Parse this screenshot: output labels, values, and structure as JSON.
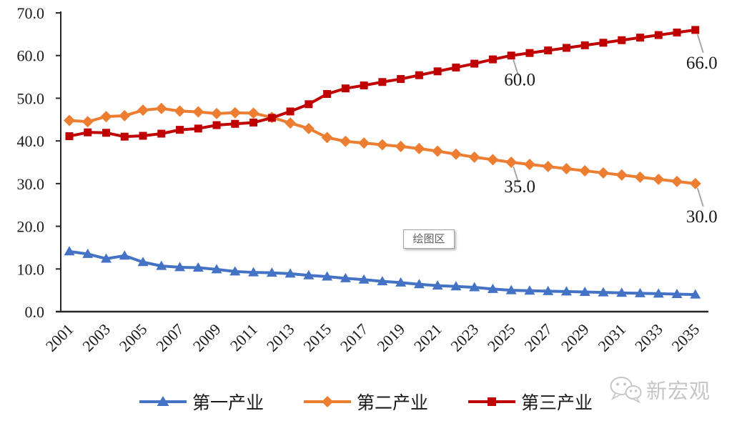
{
  "chart_data": {
    "type": "line",
    "title": "",
    "xlabel": "",
    "ylabel": "",
    "xlim": [
      2001,
      2035
    ],
    "ylim": [
      0,
      70
    ],
    "grid": false,
    "legend_position": "bottom",
    "x": [
      2001,
      2002,
      2003,
      2004,
      2005,
      2006,
      2007,
      2008,
      2009,
      2010,
      2011,
      2012,
      2013,
      2014,
      2015,
      2016,
      2017,
      2018,
      2019,
      2020,
      2021,
      2022,
      2023,
      2024,
      2025,
      2026,
      2027,
      2028,
      2029,
      2030,
      2031,
      2032,
      2033,
      2034,
      2035
    ],
    "x_tick_labels": [
      "2001",
      "2003",
      "2005",
      "2007",
      "2009",
      "2011",
      "2013",
      "2015",
      "2017",
      "2019",
      "2021",
      "2023",
      "2025",
      "2027",
      "2029",
      "2031",
      "2033",
      "2035"
    ],
    "y_tick_labels": [
      "70.0",
      "60.0",
      "50.0",
      "40.0",
      "30.0",
      "20.0",
      "10.0",
      "0.0"
    ],
    "series": [
      {
        "name": "第一产业",
        "marker": "triangle",
        "color": "#4472C4",
        "values": [
          14.1,
          13.5,
          12.4,
          13.1,
          11.6,
          10.7,
          10.4,
          10.3,
          9.9,
          9.4,
          9.2,
          9.1,
          8.9,
          8.5,
          8.2,
          7.8,
          7.5,
          7.1,
          6.8,
          6.4,
          6.1,
          5.9,
          5.7,
          5.3,
          5.0,
          4.9,
          4.8,
          4.7,
          4.6,
          4.5,
          4.4,
          4.3,
          4.2,
          4.1,
          4.0
        ]
      },
      {
        "name": "第二产业",
        "marker": "diamond",
        "color": "#ED7D31",
        "values": [
          44.8,
          44.5,
          45.7,
          45.9,
          47.2,
          47.6,
          47.0,
          46.8,
          46.4,
          46.6,
          46.5,
          45.5,
          44.2,
          42.9,
          40.8,
          39.9,
          39.5,
          39.1,
          38.7,
          38.2,
          37.6,
          36.9,
          36.2,
          35.6,
          35.0,
          34.5,
          34.0,
          33.5,
          33.0,
          32.5,
          32.0,
          31.5,
          31.0,
          30.5,
          30.0
        ]
      },
      {
        "name": "第三产业",
        "marker": "square",
        "color": "#C00000",
        "values": [
          41.1,
          42.0,
          41.9,
          41.0,
          41.2,
          41.7,
          42.6,
          42.9,
          43.7,
          44.0,
          44.3,
          45.4,
          46.9,
          48.6,
          51.0,
          52.3,
          53.0,
          53.8,
          54.5,
          55.4,
          56.3,
          57.2,
          58.1,
          59.1,
          60.0,
          60.6,
          61.2,
          61.8,
          62.4,
          63.0,
          63.6,
          64.2,
          64.8,
          65.4,
          66.0
        ]
      }
    ],
    "annotations": [
      {
        "series_index": 2,
        "year": 2025,
        "value": 60.0,
        "label": "60.0"
      },
      {
        "series_index": 2,
        "year": 2035,
        "value": 66.0,
        "label": "66.0"
      },
      {
        "series_index": 1,
        "year": 2025,
        "value": 35.0,
        "label": "35.0"
      },
      {
        "series_index": 1,
        "year": 2035,
        "value": 30.0,
        "label": "30.0"
      }
    ],
    "annotation_leader_color": "#a6a6a6",
    "axis_color": "#262626"
  },
  "overlay": {
    "plot_area_tooltip": "绘图区"
  },
  "watermark": {
    "text": "新宏观",
    "icon": "wechat-icon"
  }
}
